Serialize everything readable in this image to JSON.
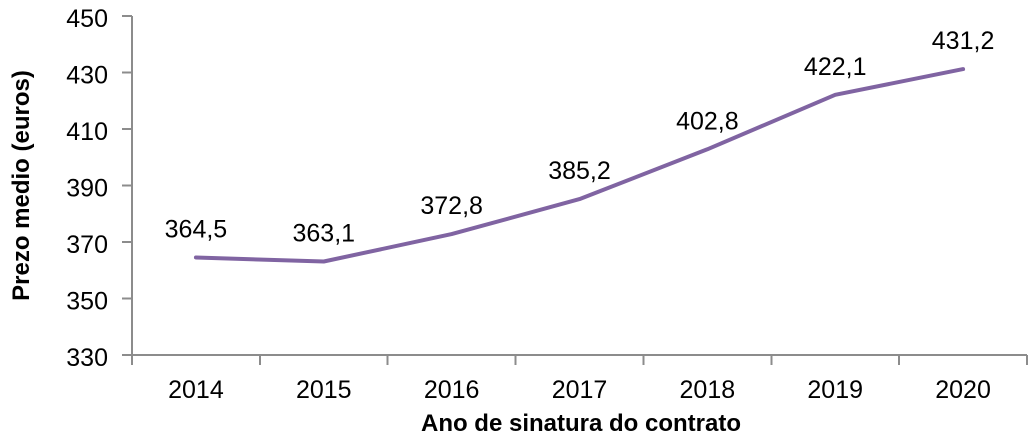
{
  "figure": {
    "background": "#FFFFFF"
  },
  "chart_data": {
    "type": "line",
    "title": "",
    "xlabel": "Ano de sinatura do contrato",
    "ylabel": "Prezo medio (euros)",
    "categories": [
      "2014",
      "2015",
      "2016",
      "2017",
      "2018",
      "2019",
      "2020"
    ],
    "values": [
      364.5,
      363.1,
      372.8,
      385.2,
      402.8,
      422.1,
      431.2
    ],
    "data_labels": [
      "364,5",
      "363,1",
      "372,8",
      "385,2",
      "402,8",
      "422,1",
      "431,2"
    ],
    "ylim": [
      330,
      450
    ],
    "ytick_step": 20,
    "ytick_labels": [
      "330",
      "350",
      "370",
      "390",
      "410",
      "430",
      "450"
    ],
    "grid": false,
    "legend": false,
    "line_color": "#8064A2",
    "axis_color": "#8C8C8C",
    "text_color": "#000000"
  }
}
